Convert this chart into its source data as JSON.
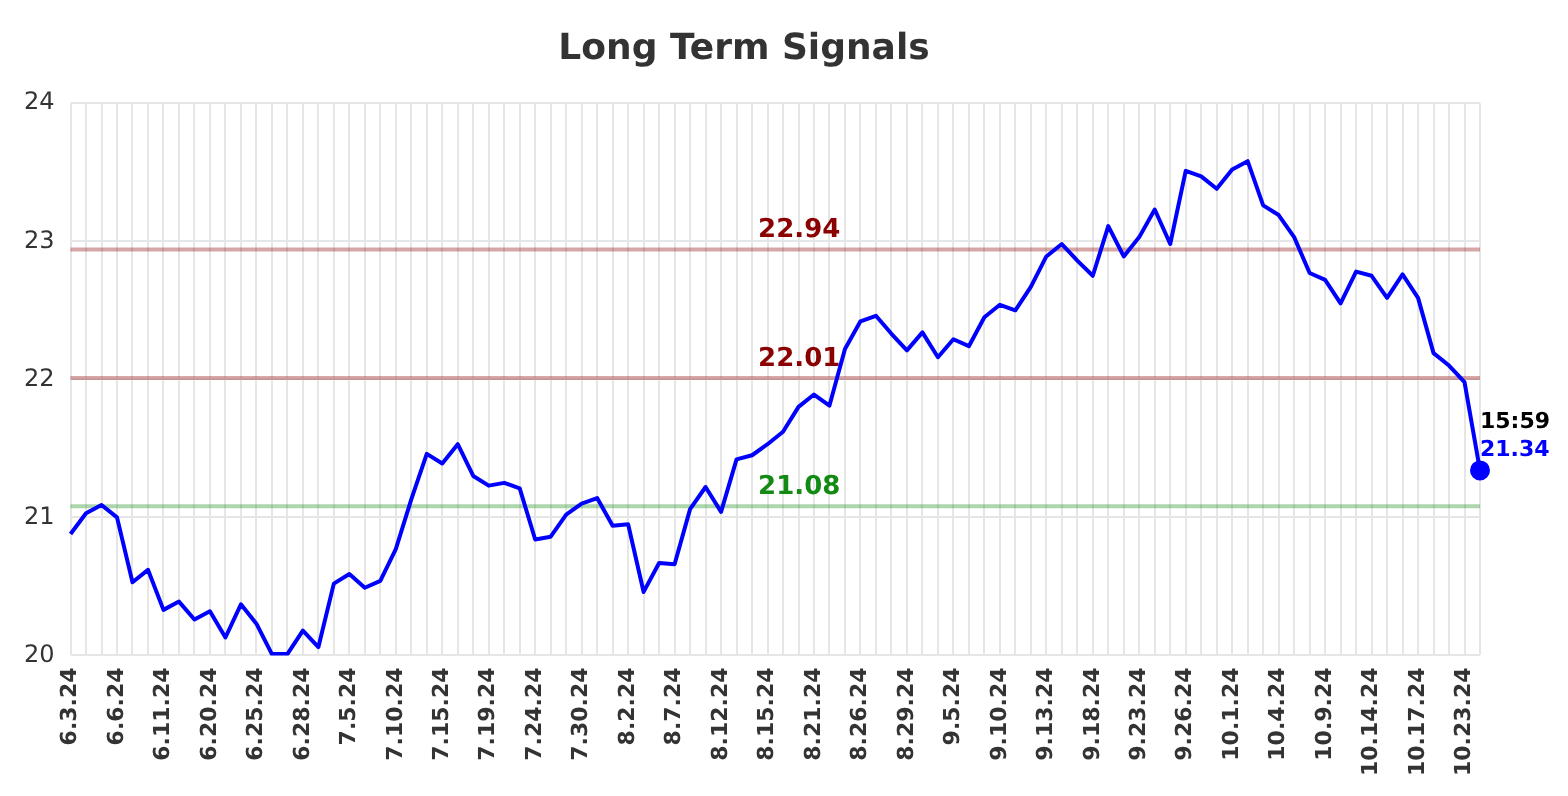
{
  "chart_data": {
    "type": "line",
    "title": "Long Term Signals",
    "categories": [
      "6.3.24",
      null,
      null,
      "6.6.24",
      null,
      null,
      "6.11.24",
      null,
      null,
      "6.20.24",
      null,
      null,
      "6.25.24",
      null,
      null,
      "6.28.24",
      null,
      null,
      "7.5.24",
      null,
      null,
      "7.10.24",
      null,
      null,
      "7.15.24",
      null,
      null,
      "7.19.24",
      null,
      null,
      "7.24.24",
      null,
      null,
      "7.30.24",
      null,
      null,
      "8.2.24",
      null,
      null,
      "8.7.24",
      null,
      null,
      "8.12.24",
      null,
      null,
      "8.15.24",
      null,
      null,
      "8.21.24",
      null,
      null,
      "8.26.24",
      null,
      null,
      "8.29.24",
      null,
      null,
      "9.5.24",
      null,
      null,
      "9.10.24",
      null,
      null,
      "9.13.24",
      null,
      null,
      "9.18.24",
      null,
      null,
      "9.23.24",
      null,
      null,
      "9.26.24",
      null,
      null,
      "10.1.24",
      null,
      null,
      "10.4.24",
      null,
      null,
      "10.9.24",
      null,
      null,
      "10.14.24",
      null,
      null,
      "10.17.24",
      null,
      null,
      "10.23.24",
      null
    ],
    "series": [
      {
        "color": "#0000ff",
        "values": [
          20.88,
          21.03,
          21.09,
          21.0,
          20.53,
          20.62,
          20.33,
          20.39,
          20.26,
          20.32,
          20.13,
          20.37,
          20.23,
          20.01,
          20.01,
          20.18,
          20.06,
          20.52,
          20.59,
          20.49,
          20.54,
          20.77,
          21.13,
          21.46,
          21.39,
          21.53,
          21.3,
          21.23,
          21.25,
          21.21,
          20.84,
          20.86,
          21.02,
          21.1,
          21.14,
          20.94,
          20.95,
          20.46,
          20.67,
          20.66,
          21.06,
          21.22,
          21.04,
          21.42,
          21.45,
          21.53,
          21.62,
          21.8,
          21.89,
          21.81,
          22.22,
          22.42,
          22.46,
          22.33,
          22.21,
          22.34,
          22.16,
          22.29,
          22.24,
          22.45,
          22.54,
          22.5,
          22.67,
          22.89,
          22.98,
          22.86,
          22.75,
          23.11,
          22.89,
          23.03,
          23.23,
          22.98,
          23.51,
          23.47,
          23.38,
          23.52,
          23.58,
          23.26,
          23.19,
          23.03,
          22.77,
          22.72,
          22.55,
          22.78,
          22.75,
          22.59,
          22.76,
          22.59,
          22.19,
          22.1,
          21.98,
          21.34
        ],
        "value_labels": [
          null,
          null,
          null,
          null,
          null,
          null,
          null,
          null,
          null,
          null,
          null,
          null,
          null,
          null,
          null,
          null,
          null,
          null,
          null,
          null,
          null,
          null,
          null,
          null,
          null,
          null,
          null,
          null,
          null,
          null,
          null,
          null,
          null,
          null,
          null,
          null,
          null,
          null,
          null,
          null,
          null,
          null,
          null,
          null,
          null,
          null,
          null,
          null,
          null,
          null,
          null,
          null,
          null,
          null,
          null,
          null,
          null,
          null,
          null,
          null,
          null,
          null,
          null,
          null,
          null,
          null,
          null,
          null,
          null,
          null,
          null,
          null,
          null,
          null,
          null,
          null,
          null,
          null,
          null,
          null,
          null,
          null,
          null,
          null,
          null,
          null,
          null,
          null,
          null,
          null,
          null,
          "21.34"
        ]
      }
    ],
    "ylim": [
      20,
      24
    ],
    "yticks": [
      20,
      21,
      22,
      23,
      24
    ],
    "grid": true,
    "legend": false,
    "marker": "none",
    "line_style": "solid",
    "ref_lines": [
      {
        "axis": "y",
        "value": 22.94,
        "label": "22.94",
        "color": "#8b0000"
      },
      {
        "axis": "y",
        "value": 22.01,
        "label": "22.01",
        "color": "#8b0000"
      },
      {
        "axis": "y",
        "value": 21.08,
        "label": "21.08",
        "color": "#138a13"
      }
    ],
    "annotations": [
      "15:59"
    ]
  }
}
